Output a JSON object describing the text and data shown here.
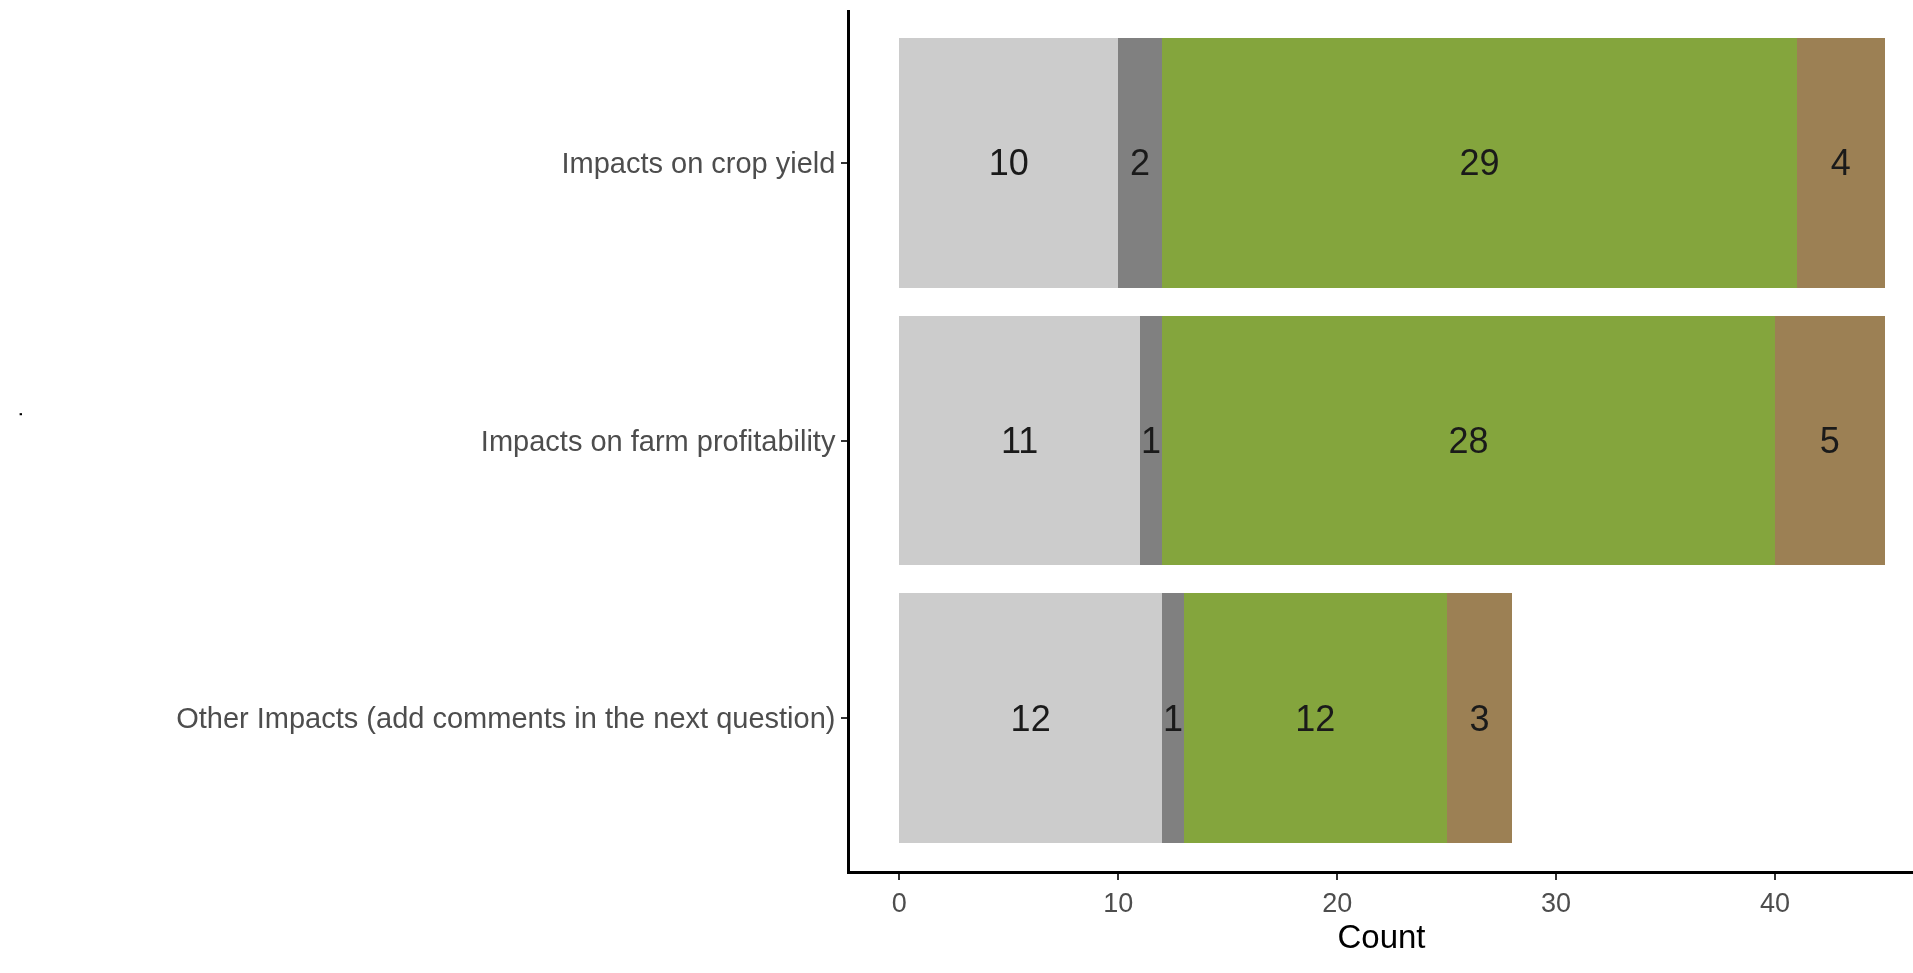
{
  "chart_data": {
    "type": "bar",
    "orientation": "horizontal",
    "stacked": true,
    "data_labels": true,
    "xlabel": "Count",
    "annotations": [
      "."
    ],
    "categories": [
      "Impacts on crop yield",
      "Impacts on farm profitability",
      "Other Impacts (add comments in the next question)"
    ],
    "series": [
      {
        "color": "#cccccc",
        "values": [
          10,
          11,
          12
        ]
      },
      {
        "color": "#808080",
        "values": [
          2,
          1,
          1
        ]
      },
      {
        "color": "#84a53d",
        "values": [
          29,
          28,
          12
        ]
      },
      {
        "color": "#9c8054",
        "values": [
          4,
          5,
          3
        ]
      }
    ],
    "xlim": [
      -2.25,
      46.3
    ],
    "xticks": [
      0,
      10,
      20,
      30,
      40
    ]
  }
}
